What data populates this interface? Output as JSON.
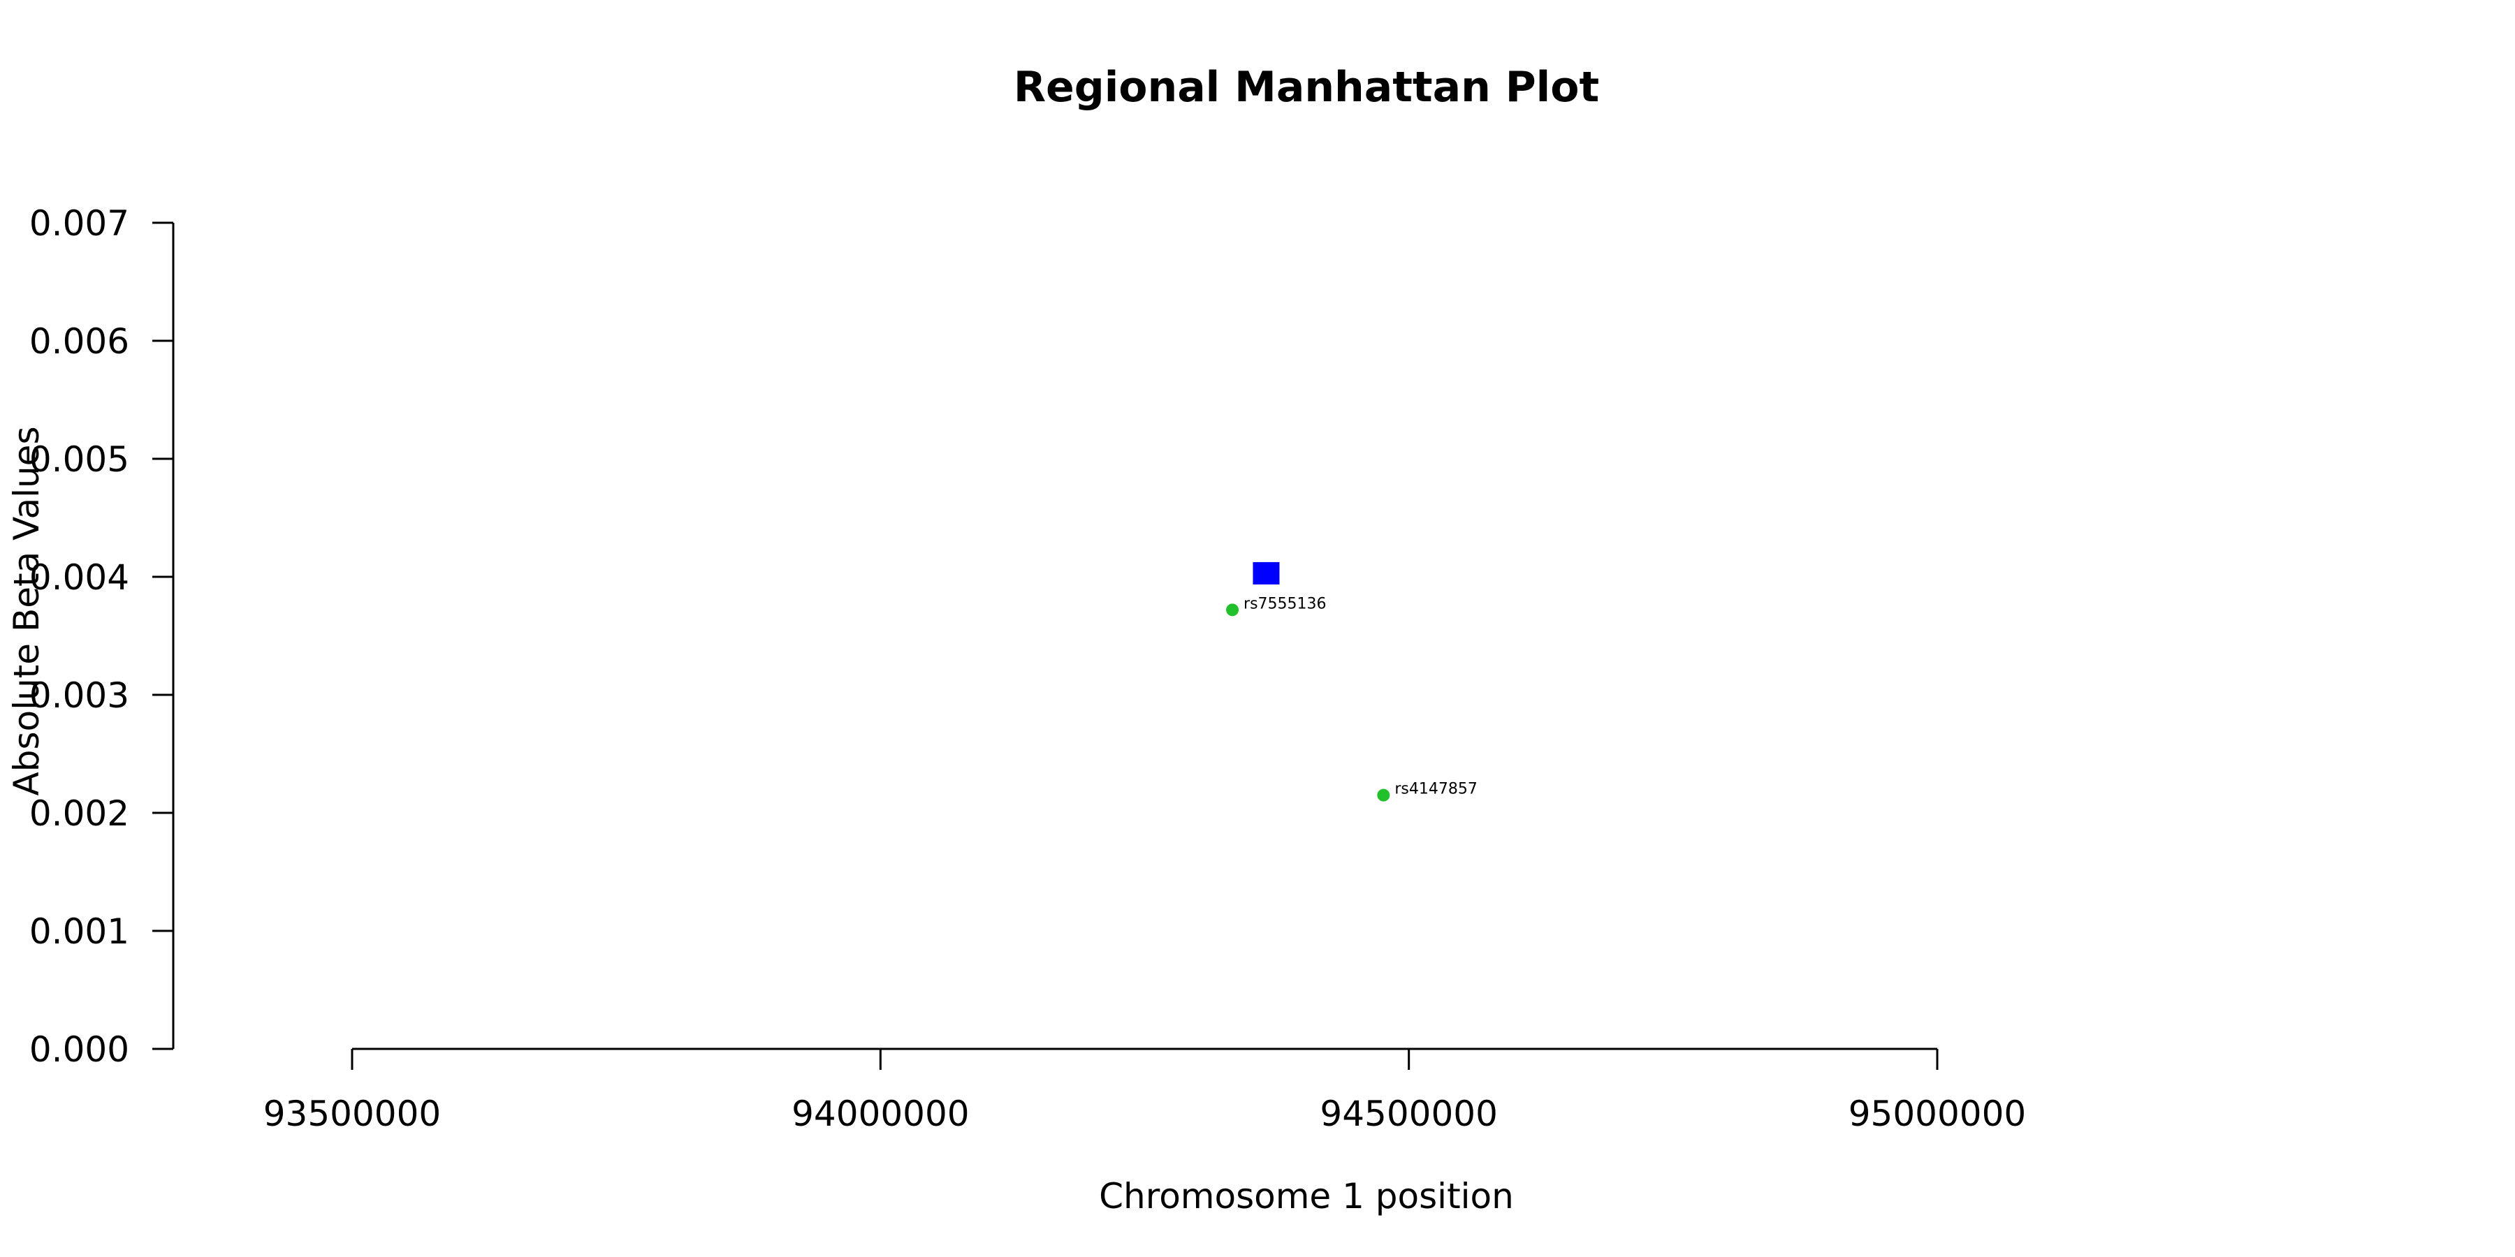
{
  "chart_data": {
    "type": "scatter",
    "title": "Regional Manhattan Plot",
    "xlabel": "Chromosome 1 position",
    "ylabel": "Absolute Beta Values",
    "xlim": [
      93500000,
      95000000
    ],
    "ylim": [
      0,
      0.007
    ],
    "x_ticks": [
      "93500000",
      "94000000",
      "94500000",
      "95000000"
    ],
    "y_ticks": [
      "0.000",
      "0.001",
      "0.002",
      "0.003",
      "0.004",
      "0.005",
      "0.006",
      "0.007"
    ],
    "grid": false,
    "legend": "none",
    "series": [
      {
        "marker": "square",
        "color": "#0000ff",
        "points": [
          {
            "x": 94365000,
            "y": 0.00403
          }
        ]
      },
      {
        "marker": "circle",
        "color": "#22c02a",
        "points": [
          {
            "x": 94333000,
            "y": 0.00372,
            "label": "rs7555136"
          },
          {
            "x": 94476000,
            "y": 0.00215,
            "label": "rs4147857"
          }
        ]
      }
    ]
  }
}
